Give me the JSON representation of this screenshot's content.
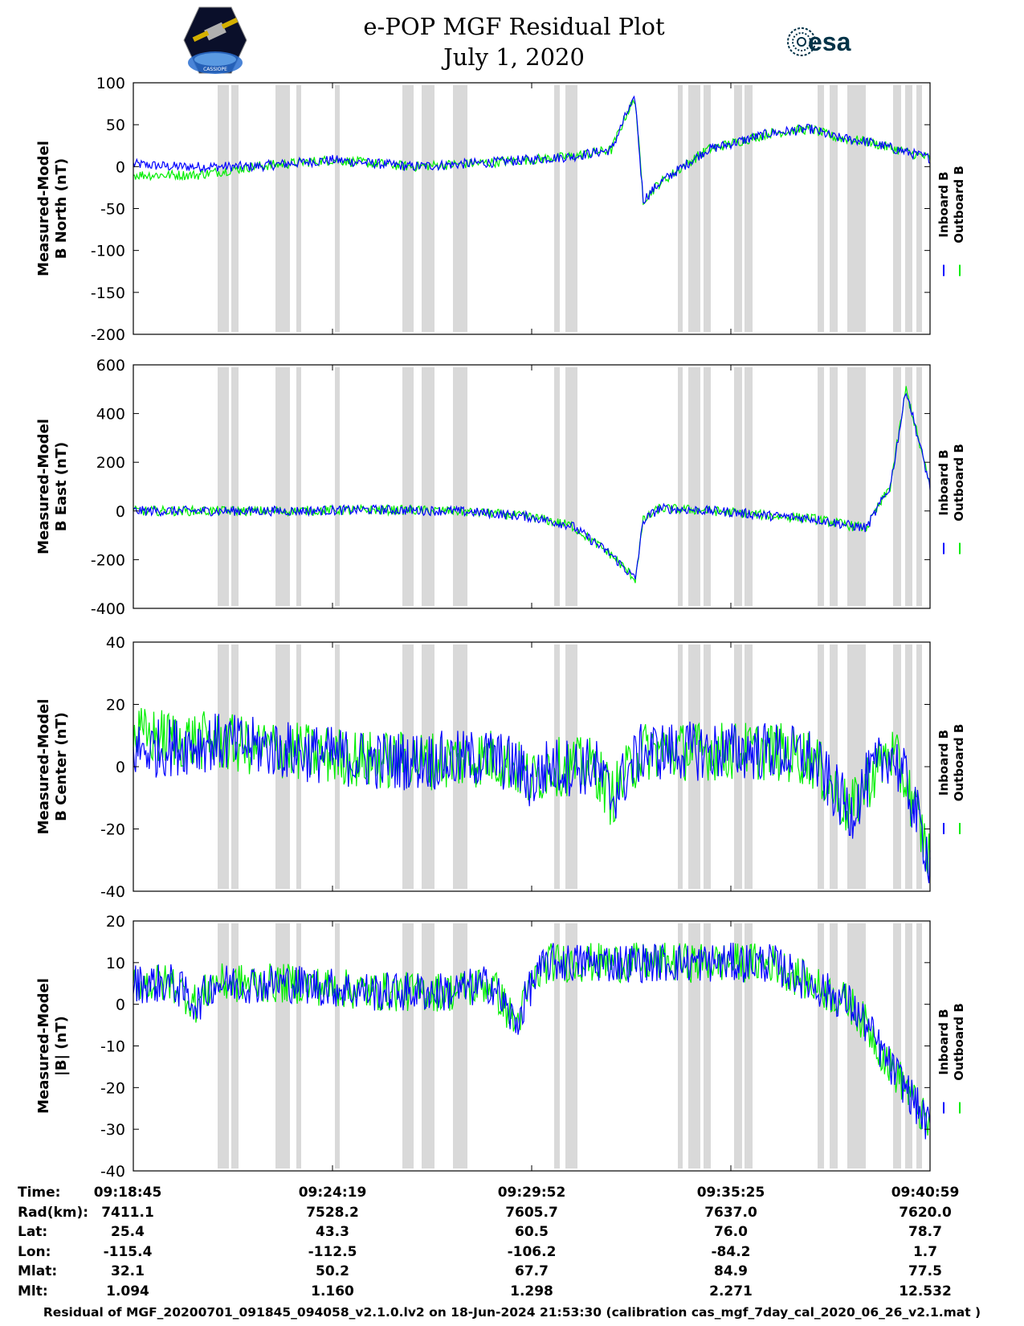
{
  "title": {
    "line1": "e-POP MGF Residual Plot",
    "line2": "July 1, 2020"
  },
  "logos": {
    "mission_text": "CASSIOPE",
    "esa_text": "esa"
  },
  "colors": {
    "inboard": "#0000ff",
    "outboard": "#00ee00",
    "gap_shading": "#d9d9d9"
  },
  "legend": {
    "inboard": "Inboard B",
    "outboard": "Outboard B"
  },
  "time_axis": {
    "ticks": [
      "09:18:45",
      "09:24:19",
      "09:29:52",
      "09:35:25",
      "09:40:59"
    ]
  },
  "ephemeris": {
    "labels": [
      "Time:",
      "Rad(km):",
      "Lat:",
      "Lon:",
      "Mlat:",
      "Mlt:"
    ],
    "columns": [
      [
        "09:18:45",
        "7411.1",
        "25.4",
        "-115.4",
        "32.1",
        "1.094"
      ],
      [
        "09:24:19",
        "7528.2",
        "43.3",
        "-112.5",
        "50.2",
        "1.160"
      ],
      [
        "09:29:52",
        "7605.7",
        "60.5",
        "-106.2",
        "67.7",
        "1.298"
      ],
      [
        "09:35:25",
        "7637.0",
        "76.0",
        "-84.2",
        "84.9",
        "2.271"
      ],
      [
        "09:40:59",
        "7620.0",
        "78.7",
        "1.7",
        "77.5",
        "12.532"
      ]
    ]
  },
  "footer": "Residual of MGF_20200701_091845_094058_v2.1.0.lv2 on 18-Jun-2024 21:53:30 (calibration cas_mgf_7day_cal_2020_06_26_v2.1.mat )",
  "chart_data": [
    {
      "type": "line",
      "ylabel_line1": "Measured-Model",
      "ylabel_line2": "B North (nT)",
      "ylim": [
        -200,
        100
      ],
      "yticks": [
        "100",
        "50",
        "0",
        "-50",
        "-100",
        "-150",
        "-200"
      ],
      "series": [
        {
          "name": "Inboard B",
          "x": [
            0,
            5,
            15,
            25,
            35,
            45,
            55,
            60,
            62,
            63,
            64,
            66,
            72,
            80,
            85,
            88,
            92,
            100
          ],
          "y": [
            3,
            0,
            0,
            8,
            0,
            5,
            12,
            20,
            65,
            80,
            -40,
            -20,
            20,
            40,
            45,
            35,
            30,
            10
          ]
        },
        {
          "name": "Outboard B",
          "x": [
            0,
            8,
            15,
            25,
            35,
            45,
            55,
            60,
            62,
            63,
            64,
            66,
            72,
            80,
            85,
            88,
            92,
            100
          ],
          "y": [
            -10,
            -10,
            0,
            8,
            0,
            5,
            12,
            20,
            65,
            80,
            -40,
            -20,
            20,
            40,
            45,
            35,
            30,
            10
          ]
        }
      ]
    },
    {
      "type": "line",
      "ylabel_line1": "Measured-Model",
      "ylabel_line2": "B East (nT)",
      "ylim": [
        -400,
        600
      ],
      "yticks": [
        "600",
        "400",
        "200",
        "0",
        "-200",
        "-400"
      ],
      "series": [
        {
          "name": "Inboard B",
          "x": [
            0,
            10,
            20,
            30,
            40,
            45,
            50,
            55,
            60,
            63,
            64,
            66,
            70,
            75,
            80,
            85,
            90,
            92,
            95,
            97,
            100
          ],
          "y": [
            0,
            0,
            0,
            5,
            0,
            -10,
            -25,
            -60,
            -180,
            -280,
            -40,
            10,
            5,
            -5,
            -20,
            -30,
            -60,
            -70,
            100,
            500,
            100
          ]
        },
        {
          "name": "Outboard B",
          "x": [
            0,
            10,
            20,
            30,
            40,
            45,
            50,
            55,
            60,
            63,
            64,
            66,
            70,
            75,
            80,
            85,
            90,
            92,
            95,
            97,
            100
          ],
          "y": [
            0,
            0,
            0,
            5,
            0,
            -10,
            -25,
            -60,
            -180,
            -280,
            -40,
            10,
            5,
            -5,
            -20,
            -30,
            -60,
            -70,
            100,
            500,
            100
          ]
        }
      ]
    },
    {
      "type": "line",
      "ylabel_line1": "Measured-Model",
      "ylabel_line2": "B Center (nT)",
      "ylim": [
        -40,
        40
      ],
      "yticks": [
        "40",
        "20",
        "0",
        "-20",
        "-40"
      ],
      "series": [
        {
          "name": "Inboard B",
          "x": [
            0,
            10,
            20,
            30,
            40,
            45,
            48,
            50,
            52,
            58,
            60,
            63,
            64,
            70,
            80,
            85,
            90,
            92,
            95,
            97,
            100
          ],
          "y": [
            5,
            8,
            5,
            2,
            2,
            3,
            0,
            -5,
            0,
            0,
            -10,
            2,
            5,
            5,
            5,
            3,
            -15,
            -5,
            5,
            -5,
            -30
          ]
        },
        {
          "name": "Outboard B",
          "x": [
            0,
            10,
            20,
            30,
            40,
            45,
            48,
            50,
            52,
            58,
            60,
            63,
            64,
            70,
            80,
            85,
            90,
            92,
            95,
            97,
            100
          ],
          "y": [
            10,
            8,
            5,
            2,
            2,
            3,
            0,
            -5,
            0,
            0,
            -10,
            2,
            5,
            5,
            5,
            3,
            -15,
            -5,
            5,
            -5,
            -30
          ]
        }
      ]
    },
    {
      "type": "line",
      "ylabel_line1": "Measured-Model",
      "ylabel_line2": "|B| (nT)",
      "ylim": [
        -40,
        20
      ],
      "yticks": [
        "20",
        "10",
        "0",
        "-10",
        "-20",
        "-30",
        "-40"
      ],
      "series": [
        {
          "name": "Inboard B",
          "x": [
            0,
            5,
            8,
            10,
            20,
            30,
            40,
            45,
            48,
            50,
            52,
            55,
            60,
            65,
            70,
            75,
            80,
            85,
            90,
            92,
            95,
            97,
            100
          ],
          "y": [
            5,
            5,
            0,
            5,
            5,
            3,
            3,
            5,
            -5,
            5,
            10,
            10,
            10,
            10,
            10,
            10,
            10,
            5,
            0,
            -5,
            -15,
            -20,
            -30
          ]
        },
        {
          "name": "Outboard B",
          "x": [
            0,
            5,
            8,
            10,
            20,
            30,
            40,
            45,
            48,
            50,
            52,
            55,
            60,
            65,
            70,
            75,
            80,
            85,
            90,
            92,
            95,
            97,
            100
          ],
          "y": [
            5,
            5,
            0,
            5,
            5,
            3,
            3,
            5,
            -5,
            5,
            10,
            10,
            10,
            10,
            10,
            10,
            10,
            5,
            0,
            -5,
            -15,
            -20,
            -30
          ]
        }
      ]
    }
  ]
}
